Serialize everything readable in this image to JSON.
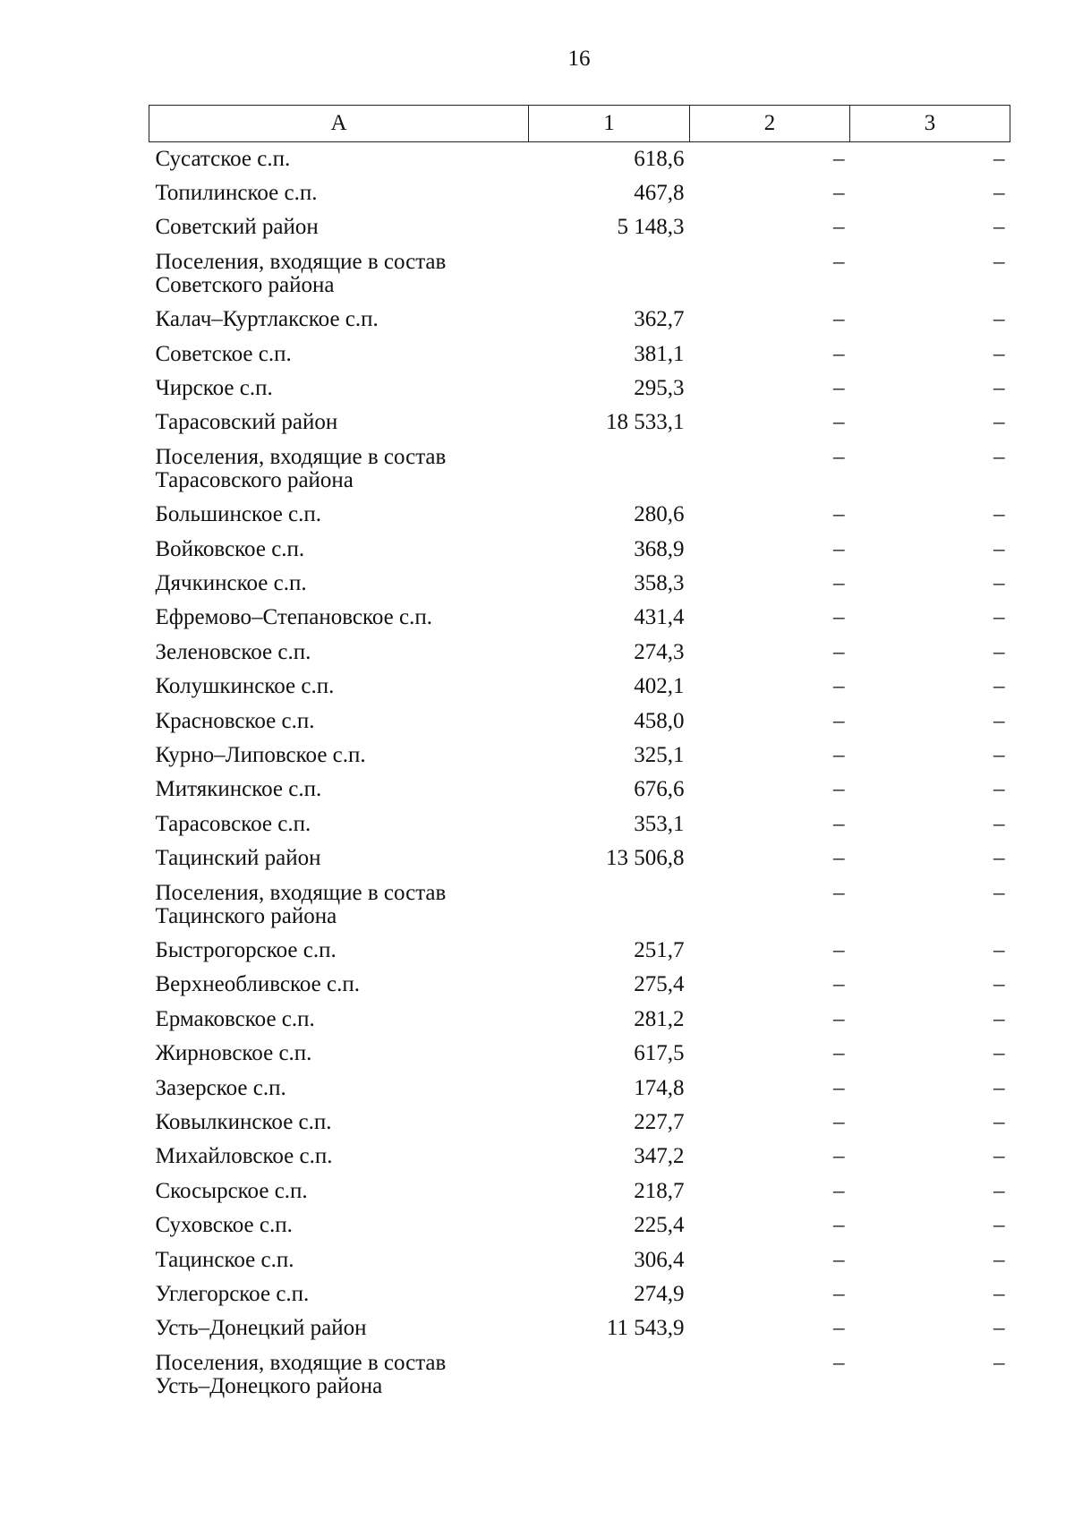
{
  "page_number": "16",
  "table": {
    "headers": [
      "А",
      "1",
      "2",
      "3"
    ],
    "rows": [
      {
        "name": "Сусатское с.п.",
        "v1": "618,6",
        "v2": "–",
        "v3": "–"
      },
      {
        "name": "Топилинское с.п.",
        "v1": "467,8",
        "v2": "–",
        "v3": "–"
      },
      {
        "name": "Советский район",
        "v1": "5 148,3",
        "v2": "–",
        "v3": "–"
      },
      {
        "name": "Поселения, входящие в состав Советского района",
        "v1": "",
        "v2": "–",
        "v3": "–"
      },
      {
        "name": "Калач–Куртлакское с.п.",
        "v1": "362,7",
        "v2": "–",
        "v3": "–"
      },
      {
        "name": "Советское с.п.",
        "v1": "381,1",
        "v2": "–",
        "v3": "–"
      },
      {
        "name": "Чирское с.п.",
        "v1": "295,3",
        "v2": "–",
        "v3": "–"
      },
      {
        "name": "Тарасовский район",
        "v1": "18 533,1",
        "v2": "–",
        "v3": "–"
      },
      {
        "name": "Поселения, входящие в состав Тарасовского района",
        "v1": "",
        "v2": "–",
        "v3": "–"
      },
      {
        "name": "Большинское с.п.",
        "v1": "280,6",
        "v2": "–",
        "v3": "–"
      },
      {
        "name": "Войковское с.п.",
        "v1": "368,9",
        "v2": "–",
        "v3": "–"
      },
      {
        "name": "Дячкинское с.п.",
        "v1": "358,3",
        "v2": "–",
        "v3": "–"
      },
      {
        "name": "Ефремово–Степановское с.п.",
        "v1": "431,4",
        "v2": "–",
        "v3": "–"
      },
      {
        "name": "Зеленовское с.п.",
        "v1": "274,3",
        "v2": "–",
        "v3": "–"
      },
      {
        "name": "Колушкинское с.п.",
        "v1": "402,1",
        "v2": "–",
        "v3": "–"
      },
      {
        "name": "Красновское с.п.",
        "v1": "458,0",
        "v2": "–",
        "v3": "–"
      },
      {
        "name": "Курно–Липовское с.п.",
        "v1": "325,1",
        "v2": "–",
        "v3": "–"
      },
      {
        "name": "Митякинское с.п.",
        "v1": "676,6",
        "v2": "–",
        "v3": "–"
      },
      {
        "name": "Тарасовское с.п.",
        "v1": "353,1",
        "v2": "–",
        "v3": "–"
      },
      {
        "name": "Тацинский район",
        "v1": "13 506,8",
        "v2": "–",
        "v3": "–"
      },
      {
        "name": "Поселения, входящие в состав Тацинского района",
        "v1": "",
        "v2": "–",
        "v3": "–"
      },
      {
        "name": "Быстрогорское с.п.",
        "v1": "251,7",
        "v2": "–",
        "v3": "–"
      },
      {
        "name": "Верхнеобливское с.п.",
        "v1": "275,4",
        "v2": "–",
        "v3": "–"
      },
      {
        "name": "Ермаковское с.п.",
        "v1": "281,2",
        "v2": "–",
        "v3": "–"
      },
      {
        "name": "Жирновское с.п.",
        "v1": "617,5",
        "v2": "–",
        "v3": "–"
      },
      {
        "name": "Зазерское с.п.",
        "v1": "174,8",
        "v2": "–",
        "v3": "–"
      },
      {
        "name": "Ковылкинское с.п.",
        "v1": "227,7",
        "v2": "–",
        "v3": "–"
      },
      {
        "name": "Михайловское с.п.",
        "v1": "347,2",
        "v2": "–",
        "v3": "–"
      },
      {
        "name": "Скосырское с.п.",
        "v1": "218,7",
        "v2": "–",
        "v3": "–"
      },
      {
        "name": "Суховское с.п.",
        "v1": "225,4",
        "v2": "–",
        "v3": "–"
      },
      {
        "name": "Тацинское с.п.",
        "v1": "306,4",
        "v2": "–",
        "v3": "–"
      },
      {
        "name": "Углегорское с.п.",
        "v1": "274,9",
        "v2": "–",
        "v3": "–"
      },
      {
        "name": "Усть–Донецкий район",
        "v1": "11 543,9",
        "v2": "–",
        "v3": "–"
      },
      {
        "name": "Поселения, входящие в состав Усть–Донецкого района",
        "v1": "",
        "v2": "–",
        "v3": "–"
      }
    ]
  }
}
